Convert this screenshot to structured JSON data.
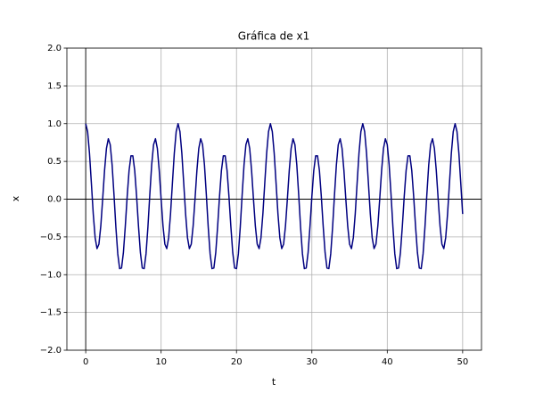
{
  "chart_data": {
    "type": "line",
    "title": "Gráfica de x1",
    "x_label": "t",
    "y_label": "x",
    "xlim": [
      -2.5,
      52.5
    ],
    "ylim": [
      -2,
      2
    ],
    "xticks": [
      0,
      10,
      20,
      30,
      40,
      50
    ],
    "yticks": [
      {
        "value": -2,
        "label": "−2.0"
      },
      {
        "value": -1.5,
        "label": "−1.5"
      },
      {
        "value": -1,
        "label": "−1.0"
      },
      {
        "value": -0.5,
        "label": "−0.5"
      },
      {
        "value": 0,
        "label": "0.0"
      },
      {
        "value": 0.5,
        "label": "0.5"
      },
      {
        "value": 1,
        "label": "1.0"
      },
      {
        "value": 1.5,
        "label": "1.5"
      },
      {
        "value": 2,
        "label": "2.0"
      }
    ],
    "grid": true,
    "axhline": 0,
    "axvline": 0,
    "x": [
      0,
      0.25,
      0.5,
      0.75,
      1,
      1.25,
      1.5,
      1.75,
      2,
      2.25,
      2.5,
      2.75,
      3,
      3.25,
      3.5,
      3.75,
      4,
      4.25,
      4.5,
      4.75,
      5,
      5.25,
      5.5,
      5.75,
      6,
      6.25,
      6.5,
      6.75,
      7,
      7.25,
      7.5,
      7.75,
      8,
      8.25,
      8.5,
      8.75,
      9,
      9.25,
      9.5,
      9.75,
      10,
      10.25,
      10.5,
      10.75,
      11,
      11.25,
      11.5,
      11.75,
      12,
      12.25,
      12.5,
      12.75,
      13,
      13.25,
      13.5,
      13.75,
      14,
      14.25,
      14.5,
      14.75,
      15,
      15.25,
      15.5,
      15.75,
      16,
      16.25,
      16.5,
      16.75,
      17,
      17.25,
      17.5,
      17.75,
      18,
      18.25,
      18.5,
      18.75,
      19,
      19.25,
      19.5,
      19.75,
      20,
      20.25,
      20.5,
      20.75,
      21,
      21.25,
      21.5,
      21.75,
      22,
      22.25,
      22.5,
      22.75,
      23,
      23.25,
      23.5,
      23.75,
      24,
      24.25,
      24.5,
      24.75,
      25,
      25.25,
      25.5,
      25.75,
      26,
      26.25,
      26.5,
      26.75,
      27,
      27.25,
      27.5,
      27.75,
      28,
      28.25,
      28.5,
      28.75,
      29,
      29.25,
      29.5,
      29.75,
      30,
      30.25,
      30.5,
      30.75,
      31,
      31.25,
      31.5,
      31.75,
      32,
      32.25,
      32.5,
      32.75,
      33,
      33.25,
      33.5,
      33.75,
      34,
      34.25,
      34.5,
      34.75,
      35,
      35.25,
      35.5,
      35.75,
      36,
      36.25,
      36.5,
      36.75,
      37,
      37.25,
      37.5,
      37.75,
      38,
      38.25,
      38.5,
      38.75,
      39,
      39.25,
      39.5,
      39.75,
      40,
      40.25,
      40.5,
      40.75,
      41,
      41.25,
      41.5,
      41.75,
      42,
      42.25,
      42.5,
      42.75,
      43,
      43.25,
      43.5,
      43.75,
      44,
      44.25,
      44.5,
      44.75,
      45,
      45.25,
      45.5,
      45.75,
      46,
      46.25,
      46.5,
      46.75,
      47,
      47.25,
      47.5,
      47.75,
      48,
      48.25,
      48.5,
      48.75,
      49,
      49.25,
      49.5,
      49.75,
      50
    ],
    "series": [
      {
        "color": "#000080",
        "values": [
          1.0,
          0.895,
          0.608,
          0.211,
          -0.196,
          -0.51,
          -0.655,
          -0.596,
          -0.354,
          0.004,
          0.381,
          0.673,
          0.8,
          0.722,
          0.454,
          0.059,
          -0.369,
          -0.724,
          -0.92,
          -0.912,
          -0.705,
          -0.358,
          0.038,
          0.378,
          0.574,
          0.574,
          0.378,
          0.038,
          -0.358,
          -0.705,
          -0.912,
          -0.92,
          -0.724,
          -0.369,
          0.059,
          0.454,
          0.722,
          0.8,
          0.673,
          0.381,
          0.004,
          -0.354,
          -0.596,
          -0.655,
          -0.51,
          -0.196,
          0.211,
          0.608,
          0.895,
          1.0,
          0.895,
          0.608,
          0.211,
          -0.196,
          -0.51,
          -0.655,
          -0.596,
          -0.354,
          0.004,
          0.381,
          0.673,
          0.8,
          0.722,
          0.454,
          0.059,
          -0.369,
          -0.724,
          -0.92,
          -0.912,
          -0.705,
          -0.358,
          0.038,
          0.378,
          0.574,
          0.574,
          0.378,
          0.038,
          -0.358,
          -0.705,
          -0.912,
          -0.92,
          -0.724,
          -0.369,
          0.059,
          0.454,
          0.722,
          0.8,
          0.673,
          0.381,
          0.004,
          -0.354,
          -0.596,
          -0.655,
          -0.51,
          -0.196,
          0.211,
          0.608,
          0.895,
          1.0,
          0.895,
          0.608,
          0.211,
          -0.196,
          -0.51,
          -0.655,
          -0.596,
          -0.354,
          0.004,
          0.381,
          0.673,
          0.8,
          0.722,
          0.454,
          0.059,
          -0.369,
          -0.724,
          -0.92,
          -0.912,
          -0.705,
          -0.358,
          0.038,
          0.378,
          0.574,
          0.574,
          0.378,
          0.038,
          -0.358,
          -0.705,
          -0.912,
          -0.92,
          -0.724,
          -0.369,
          0.059,
          0.454,
          0.722,
          0.8,
          0.673,
          0.381,
          0.004,
          -0.354,
          -0.596,
          -0.655,
          -0.51,
          -0.196,
          0.211,
          0.608,
          0.895,
          1.0,
          0.895,
          0.608,
          0.211,
          -0.196,
          -0.51,
          -0.655,
          -0.596,
          -0.354,
          0.004,
          0.381,
          0.673,
          0.8,
          0.722,
          0.454,
          0.059,
          -0.369,
          -0.724,
          -0.92,
          -0.912,
          -0.705,
          -0.358,
          0.038,
          0.378,
          0.574,
          0.574,
          0.378,
          0.038,
          -0.358,
          -0.705,
          -0.912,
          -0.92,
          -0.724,
          -0.369,
          0.059,
          0.454,
          0.722,
          0.8,
          0.673,
          0.381,
          0.004,
          -0.354,
          -0.596,
          -0.655,
          -0.51,
          -0.196,
          0.211,
          0.608,
          0.895,
          1.0,
          0.895,
          0.608,
          0.211,
          -0.196
        ]
      }
    ]
  }
}
